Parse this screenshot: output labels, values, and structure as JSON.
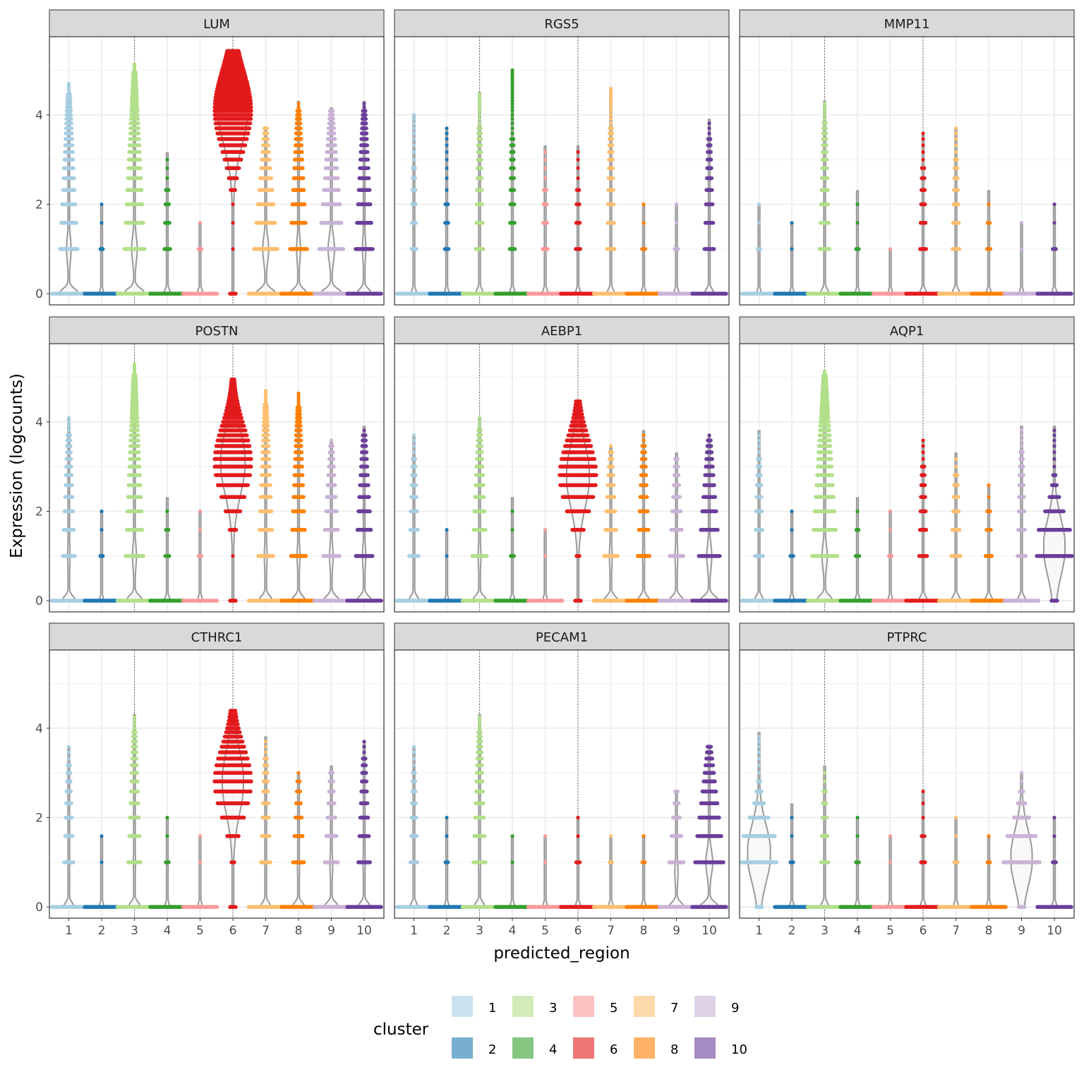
{
  "chart_data": {
    "type": "violin",
    "xlabel": "predicted_region",
    "ylabel": "Expression (logcounts)",
    "categories": [
      "1",
      "2",
      "3",
      "4",
      "5",
      "6",
      "7",
      "8",
      "9",
      "10"
    ],
    "ylim": [
      -0.25,
      5.75
    ],
    "y_ticks": [
      0,
      2,
      4
    ],
    "grid": true,
    "highlight_regions": [
      "3",
      "6"
    ],
    "legend": {
      "title": "cluster",
      "position": "bottom",
      "entries": [
        {
          "label": "1",
          "color": "#A6CEE3"
        },
        {
          "label": "2",
          "color": "#1F78B4"
        },
        {
          "label": "3",
          "color": "#B2DF8A"
        },
        {
          "label": "4",
          "color": "#33A02C"
        },
        {
          "label": "5",
          "color": "#FB9A99"
        },
        {
          "label": "6",
          "color": "#E31A1C"
        },
        {
          "label": "7",
          "color": "#FDBF6F"
        },
        {
          "label": "8",
          "color": "#FF7F00"
        },
        {
          "label": "9",
          "color": "#CAB2D6"
        },
        {
          "label": "10",
          "color": "#6A3D9A"
        }
      ]
    },
    "facets": [
      {
        "gene": "LUM",
        "max": [
          4.7,
          2.0,
          5.15,
          3.15,
          1.6,
          5.45,
          3.7,
          4.3,
          4.15,
          4.3
        ],
        "bulk": [
          0.3,
          0.02,
          0.35,
          0.08,
          0.05,
          4.1,
          0.45,
          0.3,
          0.45,
          0.3
        ],
        "width": [
          0.55,
          0.25,
          0.55,
          0.3,
          0.3,
          0.75,
          0.45,
          0.45,
          0.5,
          0.35
        ]
      },
      {
        "gene": "RGS5",
        "max": [
          4.0,
          3.7,
          4.5,
          5.0,
          3.3,
          3.3,
          4.6,
          2.0,
          2.0,
          3.9
        ],
        "bulk": [
          0.05,
          0.03,
          0.1,
          0.05,
          0.06,
          0.05,
          0.1,
          0.04,
          0.04,
          0.15
        ],
        "width": [
          0.3,
          0.3,
          0.35,
          0.35,
          0.3,
          0.3,
          0.35,
          0.3,
          0.3,
          0.35
        ]
      },
      {
        "gene": "MMP11",
        "max": [
          2.0,
          1.6,
          4.3,
          2.3,
          1.0,
          3.6,
          3.7,
          2.3,
          1.6,
          2.0
        ],
        "bulk": [
          0.02,
          0.01,
          0.15,
          0.02,
          0.01,
          0.08,
          0.1,
          0.04,
          0.02,
          0.04
        ],
        "width": [
          0.3,
          0.3,
          0.3,
          0.3,
          0.3,
          0.35,
          0.35,
          0.3,
          0.3,
          0.3
        ]
      },
      {
        "gene": "POSTN",
        "max": [
          4.1,
          2.0,
          5.3,
          2.3,
          2.0,
          4.95,
          4.7,
          4.65,
          3.6,
          3.9
        ],
        "bulk": [
          0.2,
          0.02,
          0.3,
          0.05,
          0.03,
          3.1,
          0.25,
          0.25,
          0.3,
          0.3
        ],
        "width": [
          0.45,
          0.25,
          0.45,
          0.3,
          0.3,
          0.6,
          0.4,
          0.4,
          0.4,
          0.35
        ]
      },
      {
        "gene": "AEBP1",
        "max": [
          3.7,
          1.6,
          4.1,
          2.3,
          1.6,
          4.45,
          3.45,
          3.8,
          3.3,
          3.7
        ],
        "bulk": [
          0.15,
          0.01,
          0.25,
          0.03,
          0.02,
          2.8,
          0.25,
          0.2,
          0.25,
          0.4
        ],
        "width": [
          0.4,
          0.25,
          0.4,
          0.3,
          0.3,
          0.55,
          0.4,
          0.4,
          0.4,
          0.4
        ]
      },
      {
        "gene": "AQP1",
        "max": [
          3.8,
          2.0,
          5.15,
          2.3,
          2.0,
          3.6,
          3.3,
          2.6,
          3.9,
          3.9
        ],
        "bulk": [
          0.12,
          0.03,
          0.45,
          0.04,
          0.03,
          0.12,
          0.15,
          0.1,
          0.12,
          1.2
        ],
        "width": [
          0.4,
          0.3,
          0.35,
          0.3,
          0.3,
          0.35,
          0.35,
          0.35,
          0.35,
          0.5
        ]
      },
      {
        "gene": "CTHRC1",
        "max": [
          3.6,
          1.6,
          4.3,
          2.0,
          1.6,
          4.4,
          3.8,
          3.0,
          3.15,
          3.7
        ],
        "bulk": [
          0.15,
          0.02,
          0.2,
          0.03,
          0.02,
          2.8,
          0.15,
          0.2,
          0.25,
          0.2
        ],
        "width": [
          0.4,
          0.3,
          0.4,
          0.3,
          0.3,
          0.5,
          0.4,
          0.4,
          0.4,
          0.4
        ]
      },
      {
        "gene": "PECAM1",
        "max": [
          3.6,
          2.0,
          4.3,
          1.6,
          1.6,
          2.0,
          1.6,
          1.6,
          2.6,
          3.6
        ],
        "bulk": [
          0.1,
          0.02,
          0.2,
          0.02,
          0.02,
          0.05,
          0.03,
          0.03,
          0.3,
          0.6
        ],
        "width": [
          0.35,
          0.3,
          0.35,
          0.3,
          0.3,
          0.3,
          0.3,
          0.3,
          0.35,
          0.4
        ]
      },
      {
        "gene": "PTPRC",
        "max": [
          3.9,
          2.3,
          3.15,
          2.0,
          1.6,
          2.6,
          2.0,
          1.6,
          3.0,
          2.0
        ],
        "bulk": [
          1.2,
          0.02,
          0.12,
          0.03,
          0.02,
          0.05,
          0.04,
          0.03,
          1.1,
          0.04
        ],
        "width": [
          0.55,
          0.3,
          0.35,
          0.3,
          0.3,
          0.35,
          0.3,
          0.3,
          0.5,
          0.3
        ]
      }
    ]
  }
}
